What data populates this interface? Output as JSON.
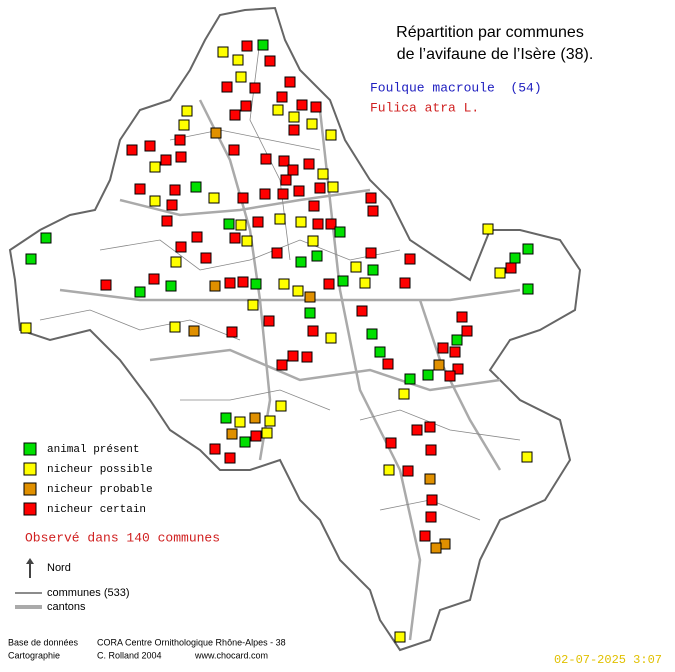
{
  "title": [
    "Répartition par communes",
    "de l’avifaune de l’Isère (38)."
  ],
  "species": {
    "common_name": "Foulque macroule  (54)",
    "common_color": "#2020c0",
    "latin_name": "Fulica atra L.",
    "latin_color": "#d02020"
  },
  "legend": [
    {
      "label": "animal présent",
      "color": "#00e000"
    },
    {
      "label": "nicheur possible",
      "color": "#ffff00"
    },
    {
      "label": "nicheur probable",
      "color": "#e09000"
    },
    {
      "label": "nicheur certain",
      "color": "#ff0000"
    }
  ],
  "observed": "Observé dans 140 communes",
  "north": "Nord",
  "line_legend": [
    "communes (533)",
    "cantons"
  ],
  "credits": {
    "db_label": "Base de données",
    "db_value": "CORA Centre Ornithologique Rhône-Alpes - 38",
    "carto_label": "Cartographie",
    "carto_value": "C. Rolland 2004",
    "site": "www.chocard.com"
  },
  "timestamp": "02-07-2025 3:07"
}
